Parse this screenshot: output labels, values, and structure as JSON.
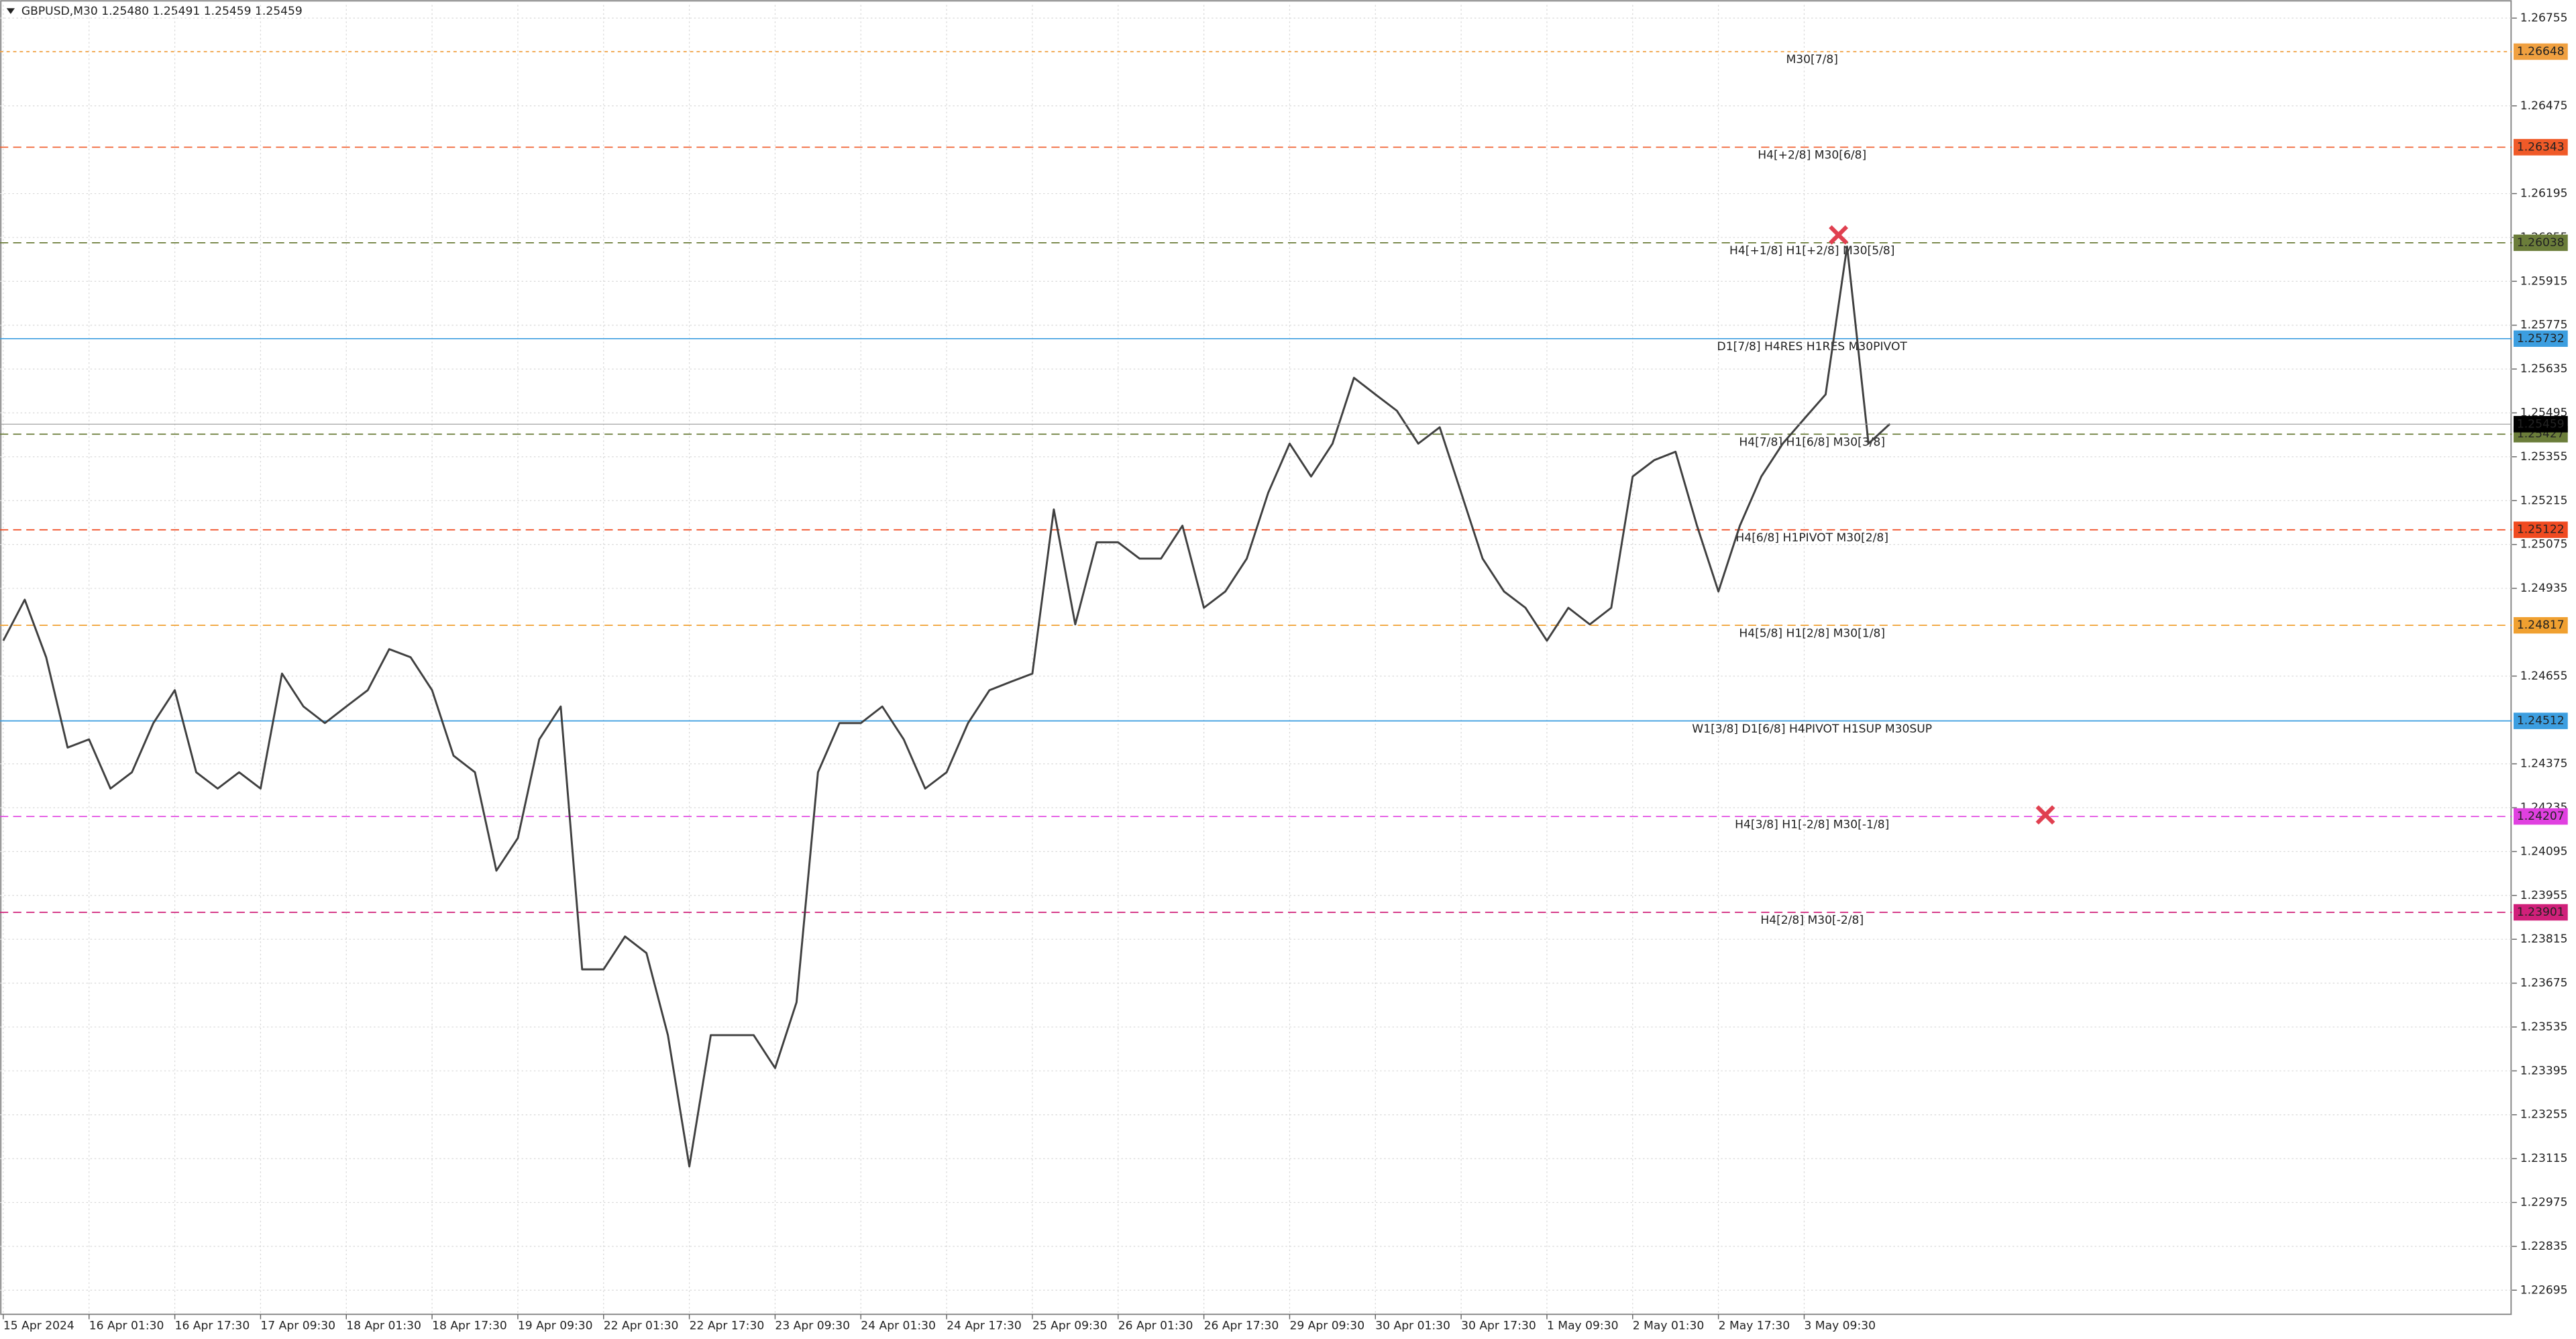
{
  "header": "GBPUSD,M30  1.25480 1.25491 1.25459 1.25459",
  "chart_data": {
    "type": "line",
    "color": "#404040",
    "grid": true,
    "ylim": [
      1.22618,
      1.26797
    ],
    "yticks": [
      1.26755,
      1.26475,
      1.26195,
      1.26055,
      1.25915,
      1.25775,
      1.25635,
      1.25495,
      1.25355,
      1.25215,
      1.25075,
      1.24935,
      1.24655,
      1.24375,
      1.24235,
      1.24095,
      1.23955,
      1.23815,
      1.23675,
      1.23535,
      1.23395,
      1.23255,
      1.23115,
      1.22975,
      1.22835,
      1.22695
    ],
    "categories": [
      "15 Apr 2024",
      null,
      null,
      null,
      "16 Apr 01:30",
      null,
      null,
      null,
      "16 Apr 17:30",
      null,
      null,
      null,
      "17 Apr 09:30",
      null,
      null,
      null,
      "18 Apr 01:30",
      null,
      null,
      null,
      "18 Apr 17:30",
      null,
      null,
      null,
      "19 Apr 09:30",
      null,
      null,
      null,
      "22 Apr 01:30",
      null,
      null,
      null,
      "22 Apr 17:30",
      null,
      null,
      null,
      "23 Apr 09:30",
      null,
      null,
      null,
      "24 Apr 01:30",
      null,
      null,
      null,
      "24 Apr 17:30",
      null,
      null,
      null,
      "25 Apr 09:30",
      null,
      null,
      null,
      "26 Apr 01:30",
      null,
      null,
      null,
      "26 Apr 17:30",
      null,
      null,
      null,
      "29 Apr 09:30",
      null,
      null,
      null,
      "30 Apr 01:30",
      null,
      null,
      null,
      "30 Apr 17:30",
      null,
      null,
      null,
      "1 May 09:30",
      null,
      null,
      null,
      "2 May 01:30",
      null,
      null,
      null,
      "2 May 17:30",
      null,
      null,
      null,
      "3 May 09:30",
      null,
      null,
      null,
      null
    ],
    "values": [
      1.24768,
      1.24899,
      1.24715,
      1.24427,
      1.24453,
      1.24296,
      1.24348,
      1.24505,
      1.2461,
      1.24348,
      1.24296,
      1.24348,
      1.24296,
      1.24663,
      1.24558,
      1.24505,
      1.24558,
      1.2461,
      1.24741,
      1.24715,
      1.2461,
      1.24401,
      1.24348,
      1.24034,
      1.24138,
      1.24453,
      1.24558,
      1.23719,
      1.23719,
      1.23824,
      1.23771,
      1.23509,
      1.2309,
      1.23509,
      1.23509,
      1.23509,
      1.23404,
      1.23614,
      1.24348,
      1.24505,
      1.24505,
      1.24558,
      1.24453,
      1.24296,
      1.24348,
      1.24505,
      1.2461,
      1.24637,
      1.24663,
      1.25187,
      1.2482,
      1.25082,
      1.25082,
      1.2503,
      1.2503,
      1.25135,
      1.24873,
      1.24925,
      1.2503,
      1.2524,
      1.25397,
      1.25292,
      1.25397,
      1.25607,
      1.25554,
      1.25502,
      1.25397,
      1.25449,
      1.2524,
      1.2503,
      1.24925,
      1.24873,
      1.24768,
      1.24873,
      1.2482,
      1.24873,
      1.25292,
      1.25344,
      1.25371,
      1.25135,
      1.24925,
      1.25135,
      1.25292,
      1.25397,
      1.25476,
      1.25554,
      1.26026,
      1.25397,
      1.2546
    ],
    "levels": [
      {
        "label": "M30[7/8]",
        "value": 1.26648,
        "color": "#f0a040",
        "style": "dotted"
      },
      {
        "label": "H4[+2/8] M30[6/8]",
        "value": 1.26343,
        "color": "#f05a28",
        "style": "dashed"
      },
      {
        "label": "H4[+1/8] H1[+2/8] M30[5/8]",
        "value": 1.26038,
        "color": "#6b7d3a",
        "style": "dashed"
      },
      {
        "label": "D1[7/8] H4RES H1RES M30PIVOT",
        "value": 1.25732,
        "color": "#3c9ee0",
        "style": "solid"
      },
      {
        "label": "H4[7/8] H1[6/8] M30[3/8]",
        "value": 1.25427,
        "color": "#6b7d3a",
        "style": "dashed"
      },
      {
        "label": "H4[6/8] H1PIVOT M30[2/8]",
        "value": 1.25122,
        "color": "#f04a20",
        "style": "dashed"
      },
      {
        "label": "H4[5/8] H1[2/8] M30[1/8]",
        "value": 1.24817,
        "color": "#f0a030",
        "style": "dashed"
      },
      {
        "label": "W1[3/8] D1[6/8] H4PIVOT H1SUP M30SUP",
        "value": 1.24512,
        "color": "#3c9ee0",
        "style": "solid"
      },
      {
        "label": "H4[3/8] H1[-2/8] M30[-1/8]",
        "value": 1.24207,
        "color": "#e040e0",
        "style": "dashed"
      },
      {
        "label": "H4[2/8] M30[-2/8]",
        "value": 1.23901,
        "color": "#d0207a",
        "style": "dashed"
      }
    ],
    "current_price": 1.25459,
    "markers": [
      {
        "x": 85.6,
        "value": 1.26063,
        "color": "#e04050"
      },
      {
        "x": 95.25,
        "value": 1.24212,
        "color": "#e04050"
      }
    ]
  }
}
